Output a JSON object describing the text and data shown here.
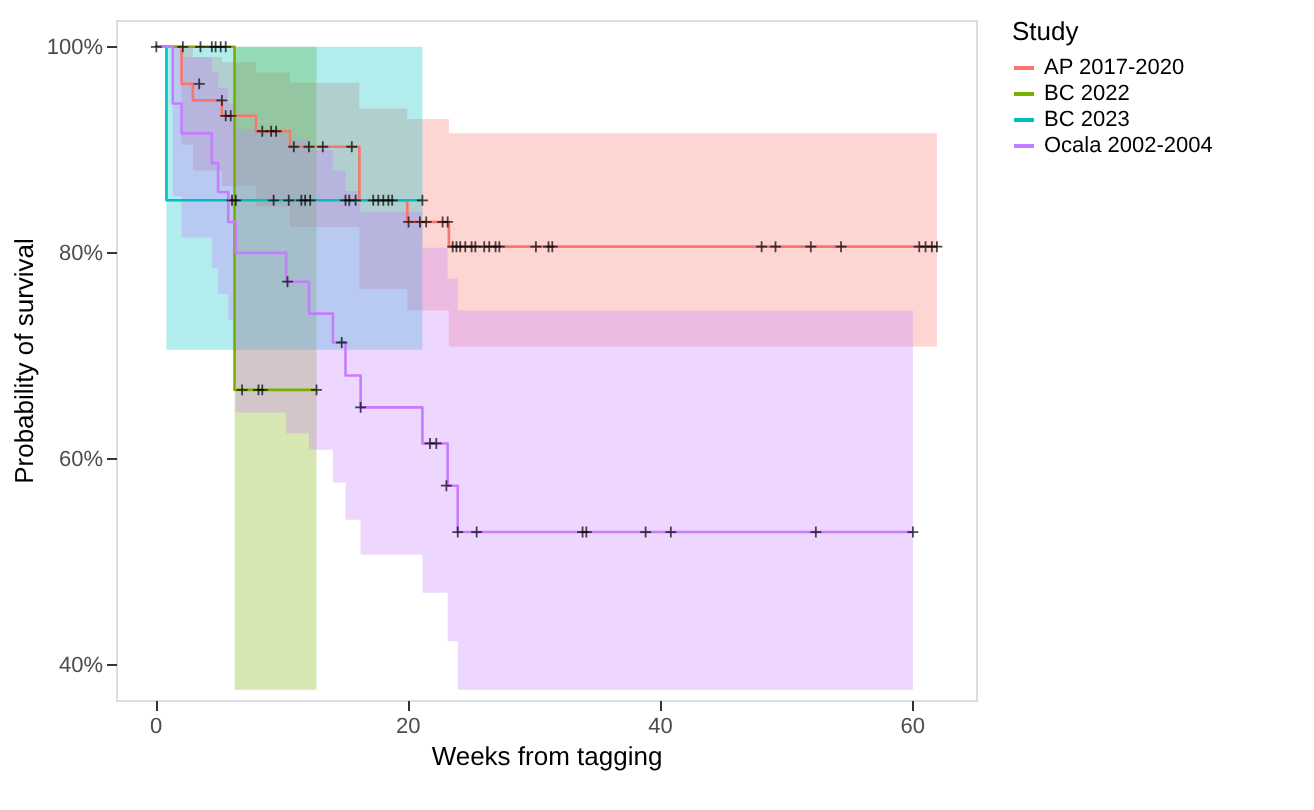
{
  "chart_data": {
    "type": "step",
    "xlabel": "Weeks from tagging",
    "ylabel": "Probability of survival",
    "legend_title": "Study",
    "legend": "right",
    "grid": false,
    "line_style": "solid",
    "xlim": [
      -3.1,
      65.1
    ],
    "ylim": [
      36.6,
      102.6
    ],
    "xticks": [
      0,
      20,
      40,
      60
    ],
    "yticks": [
      {
        "value": 40,
        "label": "40%"
      },
      {
        "value": 60,
        "label": "60%"
      },
      {
        "value": 80,
        "label": "80%"
      },
      {
        "value": 100,
        "label": "100%"
      }
    ],
    "series": [
      {
        "name": "AP 2017-2020",
        "color": "#f8766d",
        "x": [
          0,
          2.1,
          3.0,
          5.3,
          8.0,
          10.7,
          16.2,
          20.0,
          23.3,
          62.0
        ],
        "values": [
          100,
          96.4,
          94.8,
          93.3,
          91.8,
          90.3,
          85.1,
          83.0,
          80.6,
          80.6
        ],
        "lower": [
          100,
          90.5,
          88,
          86.5,
          84.5,
          82.5,
          76.5,
          74.4,
          70.9,
          70.9
        ],
        "upper": [
          100,
          100,
          99,
          98.5,
          97.5,
          96.5,
          94,
          93.0,
          91.6,
          91.6
        ]
      },
      {
        "name": "BC 2022",
        "color": "#7cae00",
        "x": [
          0,
          6.3,
          12.8
        ],
        "values": [
          100,
          66.7,
          66.7
        ],
        "lower": [
          100,
          37.6,
          37.6
        ],
        "upper": [
          100,
          100,
          100
        ]
      },
      {
        "name": "BC 2023",
        "color": "#00bfc4",
        "x": [
          0,
          0.9,
          21.2
        ],
        "values": [
          100,
          85.1,
          85.1
        ],
        "lower": [
          100,
          70.6,
          70.6
        ],
        "upper": [
          100,
          100,
          100
        ]
      },
      {
        "name": "Ocala 2002-2004",
        "color": "#c77cff",
        "x": [
          0,
          1.4,
          2.1,
          4.5,
          5.0,
          5.8,
          6.4,
          10.4,
          12.2,
          14.1,
          15.1,
          16.3,
          21.2,
          23.2,
          24.0,
          60.1
        ],
        "values": [
          100,
          94.5,
          91.6,
          88.7,
          85.9,
          83.0,
          80.0,
          77.2,
          74.1,
          71.3,
          68.1,
          65.0,
          61.5,
          57.4,
          52.9,
          52.9
        ],
        "lower": [
          100,
          85.5,
          81.5,
          78.5,
          76,
          73.5,
          64.5,
          62.5,
          60.9,
          57.7,
          54.1,
          50.7,
          47.0,
          42.3,
          37.6,
          37.6
        ],
        "upper": [
          100,
          100,
          99,
          97.5,
          96,
          94.5,
          92,
          91,
          90,
          88,
          86,
          84,
          80.5,
          77.5,
          74.4,
          74.4
        ]
      },
      {
        "type": "scatter",
        "color": "#000000",
        "marker": "cross",
        "x": [
          0.1,
          2.2,
          3.6,
          4.5,
          4.8,
          5.2,
          5.6,
          3.5,
          5.3,
          5.6,
          6.0,
          8.5,
          9.2,
          9.6,
          11.0,
          12.2,
          13.3,
          15.6,
          6.1,
          6.4,
          9.4,
          10.6,
          11.6,
          11.9,
          12.3,
          15.1,
          15.4,
          15.9,
          17.3,
          17.7,
          18.1,
          18.5,
          18.8,
          21.2,
          20.1,
          21.0,
          21.5,
          22.8,
          23.2,
          23.6,
          23.9,
          24.2,
          24.6,
          25.1,
          25.4,
          26.1,
          26.5,
          27.0,
          27.3,
          30.2,
          31.2,
          31.5,
          48.1,
          49.2,
          52.0,
          54.4,
          60.6,
          61.1,
          61.6,
          62.0,
          6.9,
          8.2,
          8.5,
          12.8,
          10.5,
          14.8,
          16.3,
          21.8,
          22.3,
          23.1,
          24.0,
          25.5,
          33.9,
          34.2,
          38.9,
          40.9,
          52.4,
          60.1
        ],
        "values": [
          100,
          100,
          100,
          100,
          100,
          100,
          100,
          96.4,
          94.8,
          93.3,
          93.3,
          91.8,
          91.8,
          91.8,
          90.3,
          90.3,
          90.3,
          90.3,
          85.1,
          85.1,
          85.1,
          85.1,
          85.1,
          85.1,
          85.1,
          85.1,
          85.1,
          85.1,
          85.1,
          85.1,
          85.1,
          85.1,
          85.1,
          85.1,
          83.0,
          83.0,
          83.0,
          83.0,
          83.0,
          80.6,
          80.6,
          80.6,
          80.6,
          80.6,
          80.6,
          80.6,
          80.6,
          80.6,
          80.6,
          80.6,
          80.6,
          80.6,
          80.6,
          80.6,
          80.6,
          80.6,
          80.6,
          80.6,
          80.6,
          80.6,
          66.7,
          66.7,
          66.7,
          66.7,
          77.2,
          71.3,
          65.0,
          61.5,
          61.5,
          57.4,
          52.9,
          52.9,
          52.9,
          52.9,
          52.9,
          52.9,
          52.9,
          52.9
        ]
      }
    ]
  }
}
